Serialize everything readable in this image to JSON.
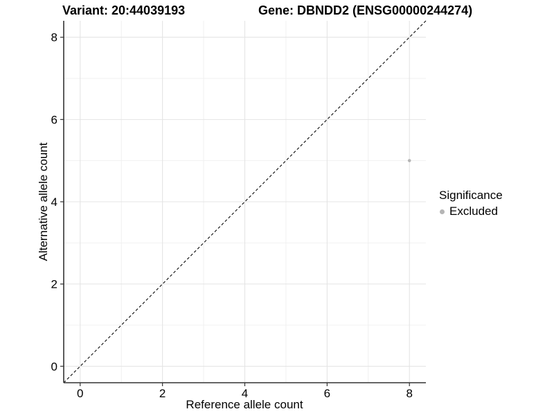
{
  "figure": {
    "background": "#ffffff"
  },
  "chart_data": {
    "type": "scatter",
    "titles": {
      "left": "Variant: 20:44039193",
      "right": "Gene: DBNDD2 (ENSG00000244274)"
    },
    "xlabel": "Reference allele count",
    "ylabel": "Alternative allele count",
    "xlim": [
      -0.4,
      8.4
    ],
    "ylim": [
      -0.4,
      8.4
    ],
    "xticks": [
      0,
      2,
      4,
      6,
      8
    ],
    "yticks": [
      0,
      2,
      4,
      6,
      8
    ],
    "minor_gridlines_x": [
      1,
      3,
      5,
      7
    ],
    "minor_gridlines_y": [
      1,
      3,
      5,
      7
    ],
    "grid": true,
    "legend_position": "right",
    "series": [
      {
        "name": "Excluded",
        "color": "#b5b5b5",
        "points": [
          {
            "x": 8,
            "y": 5
          }
        ]
      }
    ],
    "identity_line": {
      "slope": 1,
      "intercept": 0,
      "style": "dashed",
      "color": "#1a1a1a"
    },
    "legend": {
      "title": "Significance",
      "items": [
        {
          "label": "Excluded",
          "color": "#b5b5b5"
        }
      ]
    },
    "colors": {
      "grid_major": "#e4e4e4",
      "grid_minor": "#efefef",
      "axis_line": "#333333",
      "tick": "#333333",
      "text": "#000000",
      "point": "#b5b5b5"
    }
  }
}
